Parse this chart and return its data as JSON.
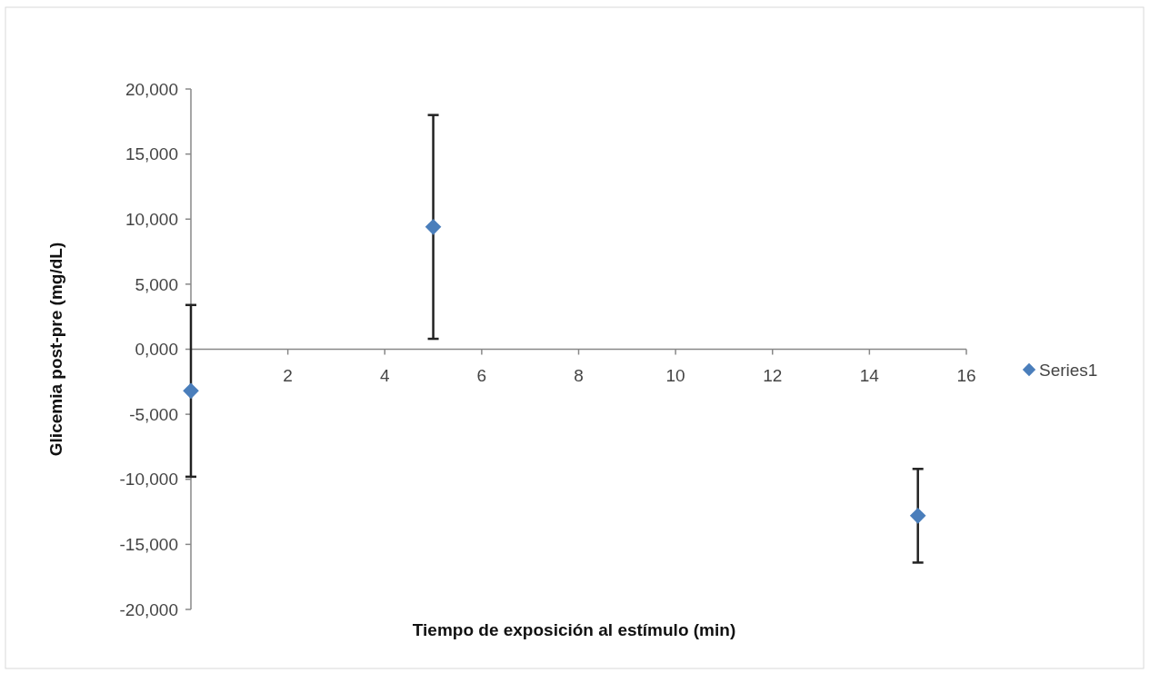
{
  "chart_data": {
    "type": "scatter",
    "xlabel": "Tiempo de exposición al estímulo (min)",
    "ylabel": "Glicemia post-pre  (mg/dL)",
    "x": [
      0,
      5,
      15
    ],
    "series": [
      {
        "name": "Series1",
        "color": "#4a7ebb",
        "values": [
          -3200,
          9400,
          -12800
        ],
        "errors": [
          6600,
          8600,
          3600
        ]
      }
    ],
    "xlim": [
      0,
      16
    ],
    "xticks": [
      2,
      4,
      6,
      8,
      10,
      12,
      14,
      16
    ],
    "ylim": [
      -20000,
      20000
    ],
    "yticks": [
      {
        "value": -20000,
        "label": "-20,000"
      },
      {
        "value": -15000,
        "label": "-15,000"
      },
      {
        "value": -10000,
        "label": "-10,000"
      },
      {
        "value": -5000,
        "label": "-5,000"
      },
      {
        "value": 0,
        "label": "0,000"
      },
      {
        "value": 5000,
        "label": "5,000"
      },
      {
        "value": 10000,
        "label": "10,000"
      },
      {
        "value": 15000,
        "label": "15,000"
      },
      {
        "value": 20000,
        "label": "20,000"
      }
    ],
    "marker": "diamond",
    "legend": "right",
    "grid": false
  }
}
